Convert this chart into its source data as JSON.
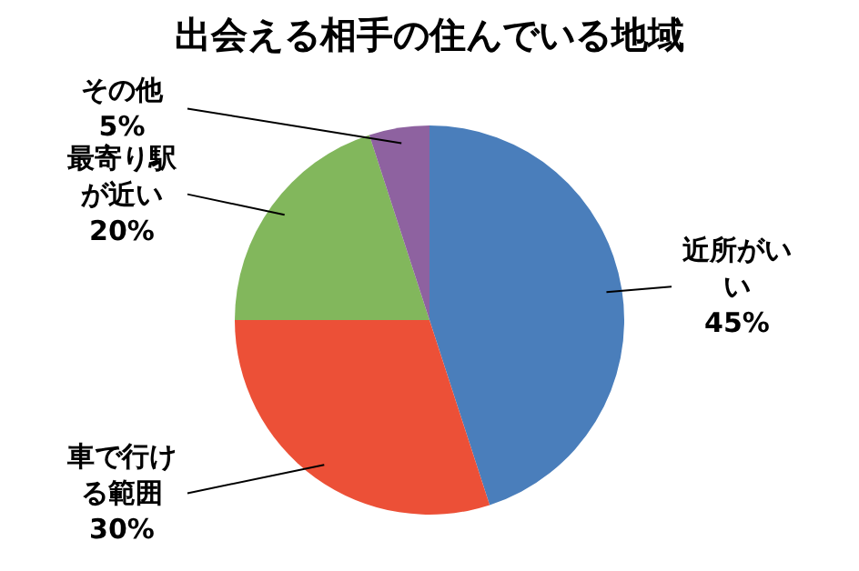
{
  "chart_data": {
    "type": "pie",
    "title": "出会える相手の住んでいる地域",
    "categories": [
      "近所がいい",
      "車で行ける範囲",
      "最寄り駅が近い",
      "その他"
    ],
    "values": [
      45,
      30,
      20,
      5
    ],
    "colors": [
      "#4a7ebb",
      "#ec5037",
      "#82b75c",
      "#8e62a0"
    ],
    "value_labels": [
      "45%",
      "30%",
      "20%",
      "5%"
    ]
  }
}
